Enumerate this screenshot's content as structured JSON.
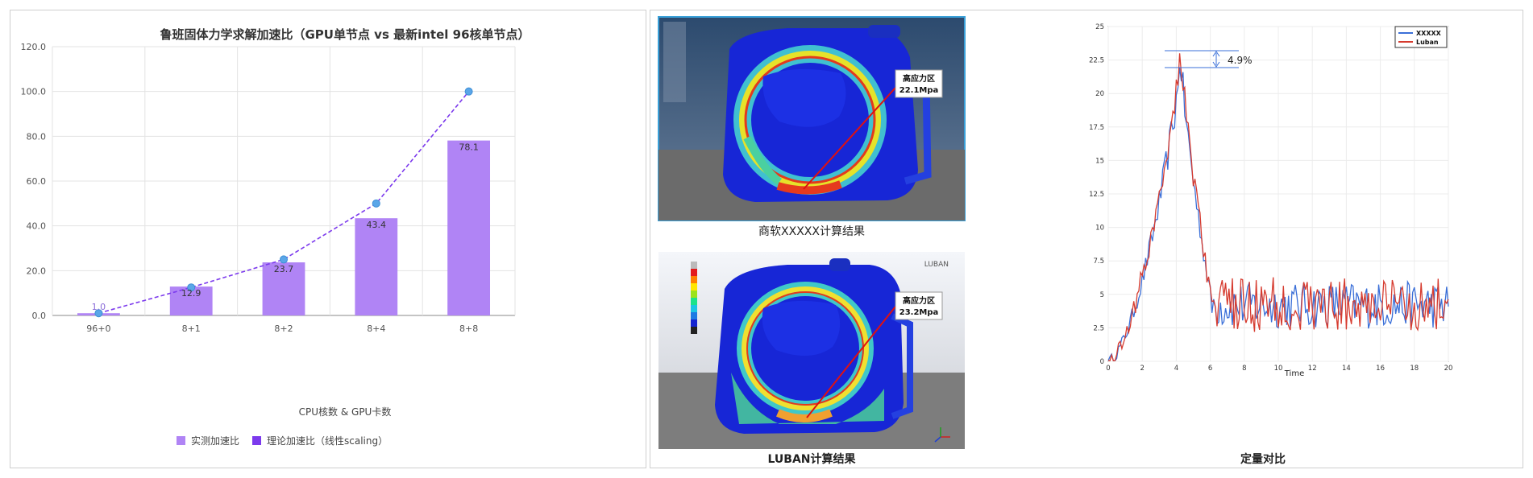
{
  "chart_data": [
    {
      "type": "bar",
      "title": "鲁班固体力学求解加速比（GPU单节点 vs 最新intel 96核单节点）",
      "xlabel": "CPU核数 & GPU卡数",
      "ylabel": "",
      "ylim": [
        0,
        120
      ],
      "yticks": [
        "0.0",
        "20.0",
        "40.0",
        "60.0",
        "80.0",
        "100.0",
        "120.0"
      ],
      "categories": [
        "96+0",
        "8+1",
        "8+2",
        "8+4",
        "8+8"
      ],
      "series": [
        {
          "name": "实测加速比",
          "kind": "bar",
          "color": "#b084f5",
          "values": [
            1.0,
            12.9,
            23.7,
            43.4,
            78.1
          ],
          "labels": [
            "1.0",
            "12.9",
            "23.7",
            "43.4",
            "78.1"
          ]
        },
        {
          "name": "理论加速比（线性scaling）",
          "kind": "line",
          "color": "#7c3aed",
          "values": [
            1,
            12.5,
            25,
            50,
            100
          ]
        }
      ],
      "legend": [
        "实测加速比",
        "理论加速比（线性scaling）"
      ],
      "legend_position": "bottom",
      "grid": true
    },
    {
      "type": "line",
      "title": "定量对比",
      "xlabel": "Time",
      "xlim": [
        0,
        20
      ],
      "ylim": [
        0,
        25
      ],
      "xticks": [
        "0",
        "2",
        "4",
        "6",
        "8",
        "10",
        "12",
        "14",
        "16",
        "18",
        "20"
      ],
      "yticks": [
        "0",
        "2.5",
        "5",
        "7.5",
        "10",
        "12.5",
        "15",
        "17.5",
        "20",
        "22.5",
        "25"
      ],
      "series": [
        {
          "name": "XXXXX",
          "color": "#3a6fd8",
          "peak": 21.9
        },
        {
          "name": "Luban",
          "color": "#d63b2f",
          "peak": 23.0
        }
      ],
      "annotation": "4.9%",
      "legend_position": "top-right",
      "grid": true
    }
  ],
  "simulation": {
    "top_caption": "商软XXXXX计算结果",
    "top_label_1": "高应力区",
    "top_label_2": "22.1Mpa",
    "bottom_caption": "LUBAN计算结果",
    "bottom_label_1": "高应力区",
    "bottom_label_2": "23.2Mpa",
    "brand": "LUBAN"
  },
  "colors": {
    "bar": "#b084f5",
    "theory": "#7c3aed",
    "xxxxx": "#3a6fd8",
    "luban": "#d63b2f"
  }
}
